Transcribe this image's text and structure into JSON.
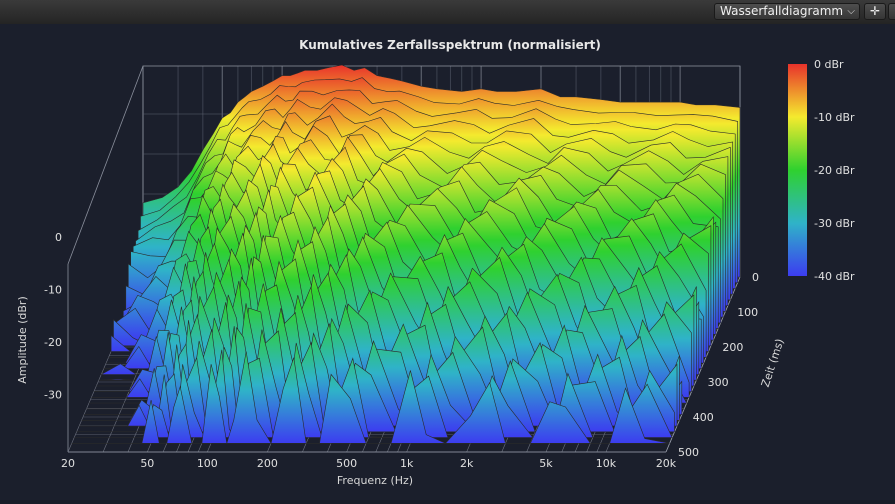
{
  "toolbar": {
    "view_select_value": "Wasserfalldiagramm",
    "move_icon": "move-arrows-icon"
  },
  "chart_data": {
    "type": "waterfall",
    "title": "Kumulatives Zerfallsspektrum (normalisiert)",
    "xlabel": "Frequenz (Hz)",
    "ylabel": "Amplitude (dBr)",
    "zlabel": "Zeit (ms)",
    "x_scale": "log",
    "xlim": [
      20,
      20000
    ],
    "x_ticks": [
      20,
      50,
      100,
      200,
      500,
      1000,
      2000,
      5000,
      10000,
      20000
    ],
    "x_tick_labels": [
      "20",
      "50",
      "100",
      "200",
      "500",
      "1k",
      "2k",
      "5k",
      "10k",
      "20k"
    ],
    "y_ticks": [
      0,
      -10,
      -20,
      -30
    ],
    "y_tick_labels": [
      "0",
      "-10",
      "-20",
      "-30"
    ],
    "z_ticks": [
      0,
      100,
      200,
      300,
      400,
      500
    ],
    "z_tick_labels": [
      "0",
      "100",
      "200",
      "300",
      "400",
      "500"
    ],
    "colorbar": {
      "ticks": [
        0,
        -10,
        -20,
        -30,
        -40
      ],
      "labels": [
        "0 dBr",
        "-10 dBr",
        "-20 dBr",
        "-30 dBr",
        "-40 dBr"
      ],
      "colors": [
        "#e8322b",
        "#f4ea2e",
        "#2fd12f",
        "#2fb3c8",
        "#3c3cf0"
      ]
    },
    "slice_count": 30,
    "front_slice": {
      "freq": [
        20,
        25,
        30,
        35,
        40,
        45,
        50,
        55,
        60,
        65,
        70,
        80,
        90,
        100,
        110,
        120,
        130,
        150,
        170,
        200,
        230,
        260,
        300,
        350,
        400,
        500,
        600,
        800,
        1000,
        1200,
        1500,
        2000,
        2500,
        3000,
        4000,
        5000,
        6000,
        8000,
        10000,
        12000,
        15000,
        20000
      ],
      "amplitude_dbr": [
        -26,
        -25,
        -23,
        -20,
        -16,
        -13,
        -10,
        -9,
        -7,
        -6,
        -5,
        -4,
        -3,
        -2,
        -2,
        -1.5,
        -1,
        -1,
        -0.5,
        0,
        -1,
        -0.5,
        -2,
        -2.5,
        -3,
        -4,
        -4.5,
        -5,
        -4.5,
        -5,
        -5,
        -4.5,
        -6,
        -6,
        -6.5,
        -7,
        -7,
        -7,
        -7,
        -7.5,
        -7.5,
        -8
      ]
    },
    "decay_db_per_slice": 1.15
  }
}
